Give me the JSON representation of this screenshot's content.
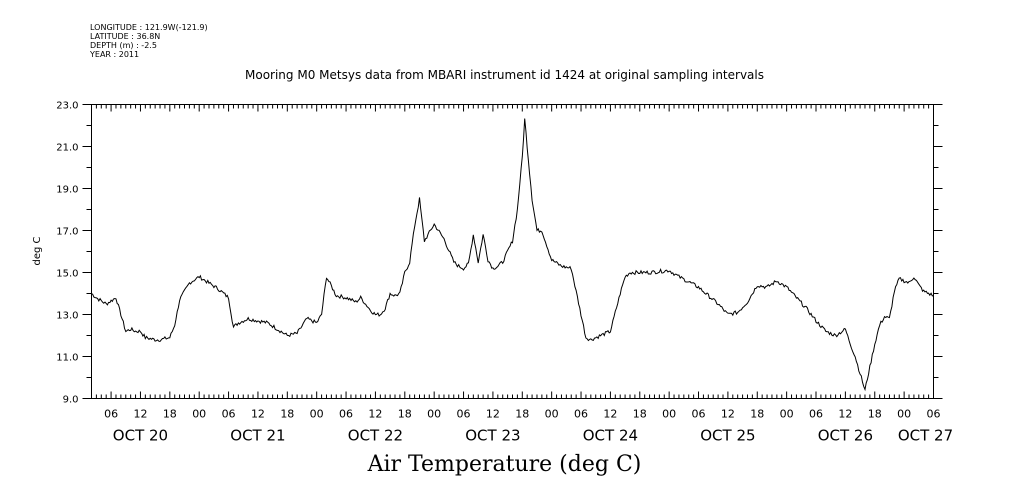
{
  "header": {
    "longitude": "LONGITUDE : 121.9W(-121.9)",
    "latitude": "LATITUDE : 36.8N",
    "depth": "DEPTH (m) : -2.5",
    "year": "YEAR : 2011"
  },
  "chart_data": {
    "type": "line",
    "title": "Mooring M0 Metsys data from MBARI instrument id 1424 at original sampling intervals",
    "xlabel": "Air Temperature (deg C)",
    "ylabel": "deg C",
    "ylim": [
      9.0,
      23.0
    ],
    "yticks": [
      "9.0",
      "11.0",
      "13.0",
      "15.0",
      "17.0",
      "19.0",
      "21.0",
      "23.0"
    ],
    "xlim": [
      "2011-10-20T02:00",
      "2011-10-27T06:00"
    ],
    "hour_ticks": [
      "06",
      "12",
      "18",
      "00",
      "06",
      "12",
      "18",
      "00",
      "06",
      "12",
      "18",
      "00",
      "06",
      "12",
      "18",
      "00",
      "06",
      "12",
      "18",
      "00",
      "06",
      "12",
      "18",
      "00",
      "06",
      "12",
      "18",
      "00",
      "06"
    ],
    "day_labels": [
      "OCT 20",
      "OCT 21",
      "OCT 22",
      "OCT 23",
      "OCT 24",
      "OCT 25",
      "OCT 26",
      "OCT 27"
    ],
    "grid": false,
    "series": [
      {
        "x": [
          "2011-10-20T02:00",
          "2011-10-20T03:00",
          "2011-10-20T05:00",
          "2011-10-20T07:00",
          "2011-10-20T09:00",
          "2011-10-20T10:00",
          "2011-10-20T11:00",
          "2011-10-20T12:00",
          "2011-10-20T13:00",
          "2011-10-20T15:00",
          "2011-10-20T16:00",
          "2011-10-20T18:00",
          "2011-10-20T19:00",
          "2011-10-20T20:00",
          "2011-10-20T22:00",
          "2011-10-21T00:00",
          "2011-10-21T02:00",
          "2011-10-21T04:00",
          "2011-10-21T06:00",
          "2011-10-21T07:00",
          "2011-10-21T08:00",
          "2011-10-21T10:00",
          "2011-10-21T14:00",
          "2011-10-21T18:00",
          "2011-10-21T20:00",
          "2011-10-21T22:00",
          "2011-10-22T00:00",
          "2011-10-22T01:00",
          "2011-10-22T02:00",
          "2011-10-22T04:00",
          "2011-10-22T06:00",
          "2011-10-22T08:00",
          "2011-10-22T09:00",
          "2011-10-22T11:00",
          "2011-10-22T12:00",
          "2011-10-22T13:00",
          "2011-10-22T14:00",
          "2011-10-22T15:00",
          "2011-10-22T16:00",
          "2011-10-22T17:00",
          "2011-10-22T18:00",
          "2011-10-22T19:00",
          "2011-10-22T20:00",
          "2011-10-22T21:00",
          "2011-10-22T22:00",
          "2011-10-23T00:00",
          "2011-10-23T02:00",
          "2011-10-23T04:00",
          "2011-10-23T05:00",
          "2011-10-23T06:00",
          "2011-10-23T07:00",
          "2011-10-23T08:00",
          "2011-10-23T09:00",
          "2011-10-23T10:00",
          "2011-10-23T11:00",
          "2011-10-23T12:00",
          "2011-10-23T13:00",
          "2011-10-23T14:00",
          "2011-10-23T16:00",
          "2011-10-23T17:00",
          "2011-10-23T18:00",
          "2011-10-23T18:30",
          "2011-10-23T19:00",
          "2011-10-23T20:00",
          "2011-10-23T21:00",
          "2011-10-23T22:00",
          "2011-10-24T00:00",
          "2011-10-24T02:00",
          "2011-10-24T04:00",
          "2011-10-24T06:00",
          "2011-10-24T07:00",
          "2011-10-24T08:00",
          "2011-10-24T10:00",
          "2011-10-24T12:00",
          "2011-10-24T14:00",
          "2011-10-24T15:00",
          "2011-10-24T16:00",
          "2011-10-24T18:00",
          "2011-10-24T20:00",
          "2011-10-25T00:00",
          "2011-10-25T02:00",
          "2011-10-25T06:00",
          "2011-10-25T08:00",
          "2011-10-25T10:00",
          "2011-10-25T12:00",
          "2011-10-25T14:00",
          "2011-10-25T16:00",
          "2011-10-25T18:00",
          "2011-10-25T20:00",
          "2011-10-25T22:00",
          "2011-10-26T00:00",
          "2011-10-26T02:00",
          "2011-10-26T04:00",
          "2011-10-26T06:00",
          "2011-10-26T08:00",
          "2011-10-26T10:00",
          "2011-10-26T12:00",
          "2011-10-26T13:00",
          "2011-10-26T14:00",
          "2011-10-26T15:00",
          "2011-10-26T16:00",
          "2011-10-26T17:00",
          "2011-10-26T18:00",
          "2011-10-26T19:00",
          "2011-10-26T20:00",
          "2011-10-26T21:00",
          "2011-10-26T22:00",
          "2011-10-26T23:00",
          "2011-10-27T00:00",
          "2011-10-27T01:00",
          "2011-10-27T02:00",
          "2011-10-27T03:00",
          "2011-10-27T04:00",
          "2011-10-27T05:00",
          "2011-10-27T06:00"
        ],
        "y": [
          14.0,
          13.8,
          13.5,
          13.8,
          12.2,
          12.3,
          12.2,
          12.2,
          11.9,
          11.8,
          11.8,
          11.9,
          12.5,
          13.7,
          14.5,
          14.8,
          14.5,
          14.2,
          13.8,
          12.4,
          12.6,
          12.8,
          12.6,
          12.0,
          12.1,
          12.8,
          12.6,
          13.0,
          14.8,
          13.9,
          13.8,
          13.6,
          13.8,
          13.2,
          13.0,
          13.0,
          13.3,
          14.0,
          13.9,
          14.0,
          15.0,
          15.5,
          17.2,
          18.5,
          16.5,
          17.3,
          16.6,
          15.5,
          15.3,
          15.2,
          15.4,
          16.8,
          15.5,
          16.8,
          15.6,
          15.2,
          15.3,
          15.5,
          16.5,
          18.0,
          20.5,
          22.3,
          21.0,
          18.5,
          17.0,
          17.0,
          15.6,
          15.3,
          15.2,
          13.0,
          11.9,
          11.8,
          12.0,
          12.2,
          14.0,
          14.8,
          15.0,
          15.0,
          15.0,
          15.1,
          14.8,
          14.3,
          13.9,
          13.5,
          13.0,
          13.1,
          13.6,
          14.4,
          14.3,
          14.6,
          14.3,
          13.8,
          13.3,
          12.7,
          12.2,
          12.0,
          12.3,
          11.6,
          11.0,
          10.2,
          9.4,
          10.5,
          11.6,
          12.5,
          12.9,
          12.8,
          14.1,
          14.7,
          14.6,
          14.5,
          14.8,
          14.4,
          14.1,
          14.0,
          13.9
        ]
      }
    ]
  }
}
